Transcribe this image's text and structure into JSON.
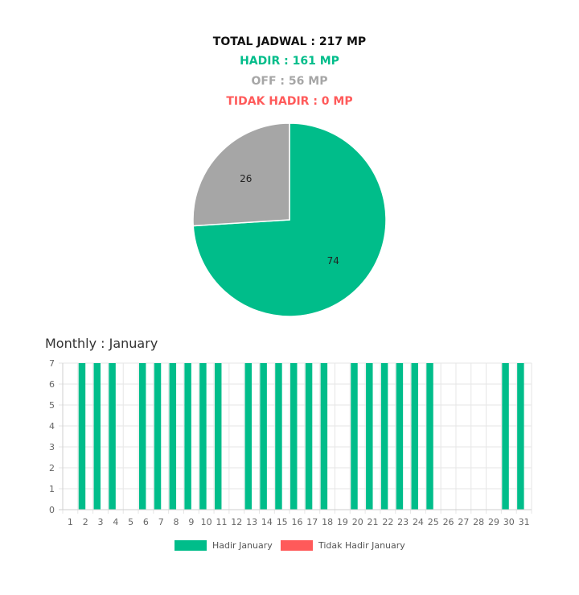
{
  "summary": {
    "total": "TOTAL JADWAL : 217 MP",
    "hadir": "HADIR : 161 MP",
    "off": "OFF : 56 MP",
    "tidak_hadir": "TIDAK HADIR : 0 MP"
  },
  "colors": {
    "hadir": "#00bd8a",
    "off": "#a6a6a6",
    "tidak_hadir": "#ff5a5a",
    "grid": "#e6e6e6"
  },
  "monthly": {
    "title": "Monthly : January"
  },
  "chart_data": [
    {
      "type": "pie",
      "slices": [
        {
          "label": "Hadir",
          "value": 74,
          "color": "#00bd8a"
        },
        {
          "label": "Off",
          "value": 26,
          "color": "#a6a6a6"
        }
      ],
      "data_labels": [
        "74",
        "26"
      ]
    },
    {
      "type": "bar",
      "categories": [
        "1",
        "2",
        "3",
        "4",
        "5",
        "6",
        "7",
        "8",
        "9",
        "10",
        "11",
        "12",
        "13",
        "14",
        "15",
        "16",
        "17",
        "18",
        "19",
        "20",
        "21",
        "22",
        "23",
        "24",
        "25",
        "26",
        "27",
        "28",
        "29",
        "30",
        "31"
      ],
      "series": [
        {
          "name": "Hadir January",
          "color": "#00bd8a",
          "values": [
            0,
            7,
            7,
            7,
            0,
            7,
            7,
            7,
            7,
            7,
            7,
            0,
            7,
            7,
            7,
            7,
            7,
            7,
            0,
            7,
            7,
            7,
            7,
            7,
            7,
            0,
            0,
            0,
            0,
            7,
            7
          ]
        },
        {
          "name": "Tidak Hadir January",
          "color": "#ff5a5a",
          "values": [
            0,
            0,
            0,
            0,
            0,
            0,
            0,
            0,
            0,
            0,
            0,
            0,
            0,
            0,
            0,
            0,
            0,
            0,
            0,
            0,
            0,
            0,
            0,
            0,
            0,
            0,
            0,
            0,
            0,
            0,
            0
          ]
        }
      ],
      "y_ticks": [
        "0",
        "1",
        "2",
        "3",
        "4",
        "5",
        "6",
        "7"
      ],
      "ylim": [
        0,
        7
      ],
      "grid": true,
      "legend_position": "bottom-center"
    }
  ]
}
